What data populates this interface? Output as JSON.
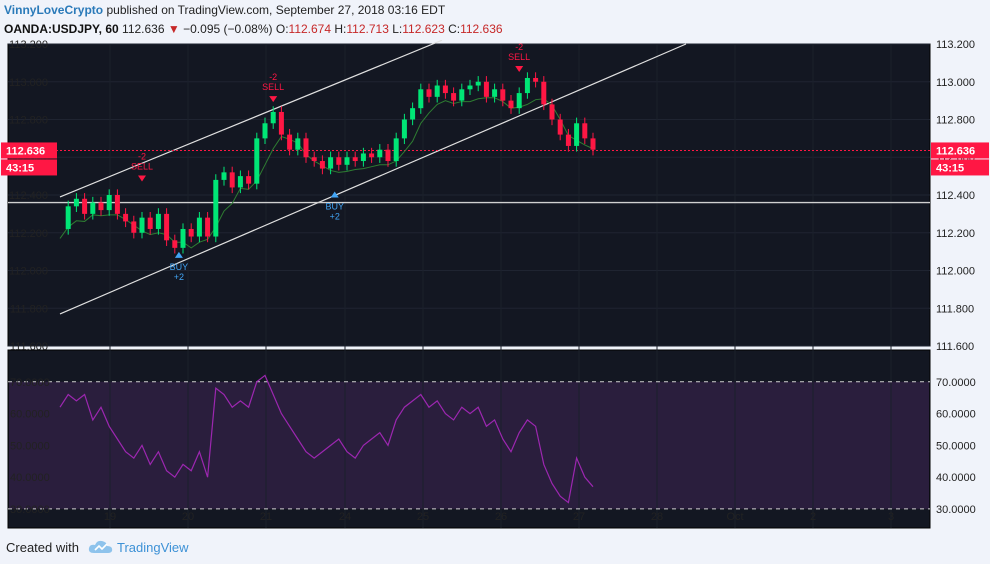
{
  "header": {
    "author": "VinnyLoveCrypto",
    "published": "published on TradingView.com, September 27, 2018 03:16 EDT",
    "symbol": "OANDA:USDJPY, 60",
    "last": "112.636",
    "change": "−0.095 (−0.08%)",
    "o_label": "O:",
    "o_val": "112.674",
    "h_label": "H:",
    "h_val": "112.713",
    "l_label": "L:",
    "l_val": "112.623",
    "c_label": "C:",
    "c_val": "112.636"
  },
  "footer": {
    "created_with": "Created with",
    "brand": "TradingView"
  },
  "colors": {
    "background": "#131722",
    "up": "#00e676",
    "down": "#ff1744",
    "ma": "#2e7d32",
    "rsi": "#9c27b0",
    "price_line": "#ff1744"
  },
  "chart_data": {
    "type": "candlestick",
    "price_axis": {
      "range": [
        111.6,
        113.2
      ],
      "ticks": [
        "113.200",
        "113.000",
        "112.800",
        "112.600",
        "112.400",
        "112.200",
        "112.000",
        "111.800",
        "111.600"
      ]
    },
    "last_price_label": "112.636",
    "countdown_label": "43:15",
    "horizontal_level": 112.36,
    "time_axis": {
      "ticks": [
        "19",
        "20",
        "21",
        "24",
        "25",
        "26",
        "27",
        "28",
        "Oct",
        "2",
        "3"
      ]
    },
    "close_path": [
      [
        0,
        112.22
      ],
      [
        4,
        112.34
      ],
      [
        8,
        112.38
      ],
      [
        12,
        112.3
      ],
      [
        16,
        112.36
      ],
      [
        20,
        112.32
      ],
      [
        24,
        112.4
      ],
      [
        28,
        112.3
      ],
      [
        32,
        112.26
      ],
      [
        36,
        112.2
      ],
      [
        40,
        112.28
      ],
      [
        44,
        112.22
      ],
      [
        48,
        112.3
      ],
      [
        52,
        112.16
      ],
      [
        56,
        112.12
      ],
      [
        60,
        112.22
      ],
      [
        64,
        112.18
      ],
      [
        68,
        112.28
      ],
      [
        72,
        112.18
      ],
      [
        76,
        112.48
      ],
      [
        80,
        112.52
      ],
      [
        84,
        112.44
      ],
      [
        88,
        112.5
      ],
      [
        92,
        112.46
      ],
      [
        96,
        112.7
      ],
      [
        100,
        112.78
      ],
      [
        104,
        112.84
      ],
      [
        108,
        112.72
      ],
      [
        112,
        112.64
      ],
      [
        116,
        112.7
      ],
      [
        120,
        112.6
      ],
      [
        124,
        112.58
      ],
      [
        128,
        112.54
      ],
      [
        132,
        112.6
      ],
      [
        136,
        112.56
      ],
      [
        140,
        112.6
      ],
      [
        144,
        112.58
      ],
      [
        148,
        112.62
      ],
      [
        152,
        112.6
      ],
      [
        156,
        112.64
      ],
      [
        160,
        112.58
      ],
      [
        164,
        112.7
      ],
      [
        168,
        112.8
      ],
      [
        172,
        112.86
      ],
      [
        176,
        112.96
      ],
      [
        180,
        112.92
      ],
      [
        184,
        112.98
      ],
      [
        188,
        112.94
      ],
      [
        192,
        112.9
      ],
      [
        196,
        112.96
      ],
      [
        200,
        112.98
      ],
      [
        204,
        113.0
      ],
      [
        208,
        112.92
      ],
      [
        212,
        112.96
      ],
      [
        216,
        112.9
      ],
      [
        220,
        112.86
      ],
      [
        224,
        112.94
      ],
      [
        228,
        113.02
      ],
      [
        232,
        113.0
      ],
      [
        236,
        112.88
      ],
      [
        240,
        112.8
      ],
      [
        244,
        112.72
      ],
      [
        248,
        112.66
      ],
      [
        252,
        112.78
      ],
      [
        256,
        112.7
      ],
      [
        260,
        112.64
      ]
    ],
    "signals": [
      {
        "type": "sell",
        "label": "SELL",
        "qty": "-2",
        "x": 40,
        "price": 112.44
      },
      {
        "type": "buy",
        "label": "BUY",
        "qty": "+2",
        "x": 58,
        "price": 112.12
      },
      {
        "type": "sell",
        "label": "SELL",
        "qty": "-2",
        "x": 104,
        "price": 112.86
      },
      {
        "type": "buy",
        "label": "BUY",
        "qty": "+2",
        "x": 134,
        "price": 112.44
      },
      {
        "type": "sell",
        "label": "SELL",
        "qty": "-2",
        "x": 224,
        "price": 113.02
      }
    ],
    "rsi": {
      "range": [
        30,
        70
      ],
      "ticks": [
        "70.0000",
        "60.0000",
        "50.0000",
        "40.0000",
        "30.0000"
      ],
      "bands": [
        70,
        30
      ],
      "values": [
        [
          0,
          62
        ],
        [
          4,
          66
        ],
        [
          8,
          64
        ],
        [
          12,
          66
        ],
        [
          16,
          58
        ],
        [
          20,
          62
        ],
        [
          24,
          56
        ],
        [
          28,
          52
        ],
        [
          32,
          48
        ],
        [
          36,
          46
        ],
        [
          40,
          50
        ],
        [
          44,
          44
        ],
        [
          48,
          48
        ],
        [
          52,
          42
        ],
        [
          56,
          40
        ],
        [
          60,
          44
        ],
        [
          64,
          42
        ],
        [
          68,
          48
        ],
        [
          72,
          40
        ],
        [
          76,
          68
        ],
        [
          80,
          66
        ],
        [
          84,
          62
        ],
        [
          88,
          64
        ],
        [
          92,
          62
        ],
        [
          96,
          70
        ],
        [
          100,
          72
        ],
        [
          104,
          66
        ],
        [
          108,
          60
        ],
        [
          112,
          56
        ],
        [
          116,
          52
        ],
        [
          120,
          48
        ],
        [
          124,
          46
        ],
        [
          128,
          48
        ],
        [
          132,
          50
        ],
        [
          136,
          52
        ],
        [
          140,
          48
        ],
        [
          144,
          46
        ],
        [
          148,
          50
        ],
        [
          152,
          52
        ],
        [
          156,
          54
        ],
        [
          160,
          50
        ],
        [
          164,
          58
        ],
        [
          168,
          62
        ],
        [
          172,
          64
        ],
        [
          176,
          66
        ],
        [
          180,
          62
        ],
        [
          184,
          64
        ],
        [
          188,
          60
        ],
        [
          192,
          58
        ],
        [
          196,
          62
        ],
        [
          200,
          60
        ],
        [
          204,
          62
        ],
        [
          208,
          56
        ],
        [
          212,
          58
        ],
        [
          216,
          52
        ],
        [
          220,
          48
        ],
        [
          224,
          54
        ],
        [
          228,
          58
        ],
        [
          232,
          56
        ],
        [
          236,
          44
        ],
        [
          240,
          38
        ],
        [
          244,
          34
        ],
        [
          248,
          32
        ],
        [
          252,
          46
        ],
        [
          256,
          40
        ],
        [
          260,
          37
        ]
      ]
    }
  }
}
